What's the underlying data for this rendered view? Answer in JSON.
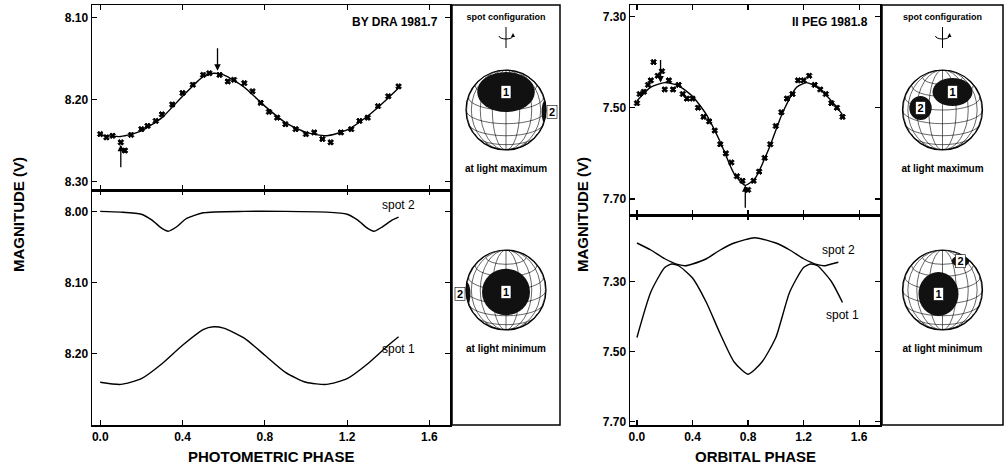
{
  "chart_data": [
    {
      "type": "line",
      "title": "BY DRA 1981.7",
      "x_label": "PHOTOMETRIC PHASE",
      "y_label": "MAGNITUDE (V)",
      "xlim": [
        -0.04,
        1.7
      ],
      "xticks": [
        {
          "value": 0,
          "label": "0.0"
        },
        0.4,
        0.8,
        1.2,
        1.6
      ],
      "grid": false,
      "panels": [
        {
          "ylim": [
            8.31,
            8.085
          ],
          "yticks": [
            {
              "value": 8.1,
              "label": "8.10"
            },
            {
              "value": 8.2,
              "label": "8.20"
            },
            {
              "value": 8.3,
              "label": "8.30"
            }
          ],
          "tick_labels": "y",
          "annotations": [
            {
              "x": 0.57,
              "y": 8.165,
              "arrow": "down"
            },
            {
              "x": 0.1,
              "y": 8.255,
              "arrow": "up"
            }
          ],
          "series": [
            {
              "type": "scatter",
              "marker": "cross",
              "color": "#000000",
              "x": [
                0.0,
                0.03,
                0.06,
                0.1,
                0.12,
                0.15,
                0.2,
                0.23,
                0.27,
                0.3,
                0.35,
                0.4,
                0.45,
                0.5,
                0.53,
                0.58,
                0.62,
                0.65,
                0.7,
                0.74,
                0.78,
                0.82,
                0.86,
                0.9,
                0.95,
                1.0,
                1.04,
                1.08,
                1.12,
                1.17,
                1.22,
                1.26,
                1.3,
                1.35,
                1.4,
                1.45
              ],
              "values": [
                8.242,
                8.246,
                8.244,
                8.252,
                8.262,
                8.243,
                8.236,
                8.232,
                8.226,
                8.218,
                8.206,
                8.192,
                8.182,
                8.17,
                8.168,
                8.17,
                8.178,
                8.176,
                8.18,
                8.19,
                8.204,
                8.215,
                8.222,
                8.23,
                8.236,
                8.242,
                8.24,
                8.248,
                8.252,
                8.24,
                8.236,
                8.226,
                8.222,
                8.208,
                8.196,
                8.184
              ]
            },
            {
              "type": "line",
              "line_style": "solid",
              "color": "#000000",
              "x": [
                0.0,
                0.1,
                0.2,
                0.3,
                0.4,
                0.5,
                0.55,
                0.6,
                0.7,
                0.8,
                0.9,
                1.0,
                1.1,
                1.2,
                1.3,
                1.4,
                1.45
              ],
              "values": [
                8.243,
                8.245,
                8.238,
                8.222,
                8.196,
                8.172,
                8.168,
                8.17,
                8.185,
                8.208,
                8.228,
                8.24,
                8.244,
                8.237,
                8.22,
                8.198,
                8.186
              ]
            }
          ]
        },
        {
          "ylim": [
            8.3,
            7.97
          ],
          "yticks": [
            {
              "value": 8.0,
              "label": "8.00"
            },
            {
              "value": 8.1,
              "label": "8.10"
            },
            {
              "value": 8.2,
              "label": "8.20"
            }
          ],
          "series": [
            {
              "name": "spot 2",
              "type": "line",
              "line_style": "solid",
              "color": "#000000",
              "x": [
                0.0,
                0.1,
                0.2,
                0.25,
                0.3,
                0.33,
                0.37,
                0.42,
                0.5,
                0.7,
                0.9,
                1.1,
                1.2,
                1.25,
                1.3,
                1.33,
                1.37,
                1.42,
                1.45
              ],
              "values": [
                8.0,
                8.001,
                8.004,
                8.012,
                8.024,
                8.028,
                8.022,
                8.01,
                8.002,
                8.0,
                8.0,
                8.001,
                8.004,
                8.012,
                8.024,
                8.028,
                8.022,
                8.012,
                8.008
              ]
            },
            {
              "name": "spot 1",
              "type": "line",
              "line_style": "solid",
              "color": "#000000",
              "x": [
                0.0,
                0.1,
                0.2,
                0.3,
                0.4,
                0.5,
                0.55,
                0.6,
                0.7,
                0.8,
                0.9,
                1.0,
                1.1,
                1.2,
                1.3,
                1.4,
                1.45
              ],
              "values": [
                8.24,
                8.243,
                8.235,
                8.214,
                8.188,
                8.166,
                8.162,
                8.164,
                8.178,
                8.202,
                8.226,
                8.24,
                8.243,
                8.235,
                8.214,
                8.188,
                8.176
              ]
            }
          ]
        }
      ]
    },
    {
      "type": "line",
      "title": "II PEG 1981.8",
      "x_label": "ORBITAL PHASE",
      "y_label": "MAGNITUDE (V)",
      "xlim": [
        -0.05,
        1.75
      ],
      "xticks": [
        {
          "value": 0,
          "label": "0.0"
        },
        0.4,
        0.8,
        1.2,
        1.6
      ],
      "grid": false,
      "panels": [
        {
          "ylim": [
            7.735,
            7.275
          ],
          "yticks": [
            {
              "value": 7.3,
              "label": "7.30"
            },
            {
              "value": 7.5,
              "label": "7.50"
            },
            {
              "value": 7.7,
              "label": "7.70"
            }
          ],
          "tick_labels": "y",
          "annotations": [
            {
              "x": 0.17,
              "y": 7.445,
              "arrow": "down"
            },
            {
              "x": 0.78,
              "y": 7.67,
              "arrow": "up"
            }
          ],
          "series": [
            {
              "type": "scatter",
              "marker": "cross",
              "color": "#000000",
              "x": [
                0.0,
                0.02,
                0.05,
                0.08,
                0.1,
                0.12,
                0.15,
                0.18,
                0.2,
                0.23,
                0.26,
                0.3,
                0.33,
                0.36,
                0.4,
                0.44,
                0.48,
                0.52,
                0.56,
                0.6,
                0.64,
                0.68,
                0.72,
                0.76,
                0.8,
                0.84,
                0.88,
                0.92,
                0.96,
                1.0,
                1.04,
                1.08,
                1.12,
                1.16,
                1.2,
                1.24,
                1.28,
                1.32,
                1.36,
                1.4,
                1.44,
                1.48
              ],
              "values": [
                7.49,
                7.47,
                7.465,
                7.45,
                7.44,
                7.4,
                7.43,
                7.42,
                7.46,
                7.44,
                7.46,
                7.45,
                7.47,
                7.48,
                7.48,
                7.5,
                7.52,
                7.53,
                7.55,
                7.58,
                7.6,
                7.62,
                7.65,
                7.66,
                7.68,
                7.66,
                7.64,
                7.61,
                7.58,
                7.54,
                7.51,
                7.48,
                7.47,
                7.44,
                7.44,
                7.43,
                7.45,
                7.46,
                7.47,
                7.49,
                7.5,
                7.52
              ]
            },
            {
              "type": "line",
              "line_style": "solid",
              "color": "#000000",
              "x": [
                0.0,
                0.1,
                0.2,
                0.3,
                0.4,
                0.5,
                0.6,
                0.7,
                0.78,
                0.85,
                0.95,
                1.05,
                1.15,
                1.22,
                1.3,
                1.4,
                1.48
              ],
              "values": [
                7.485,
                7.455,
                7.445,
                7.452,
                7.475,
                7.515,
                7.575,
                7.645,
                7.67,
                7.655,
                7.59,
                7.51,
                7.455,
                7.445,
                7.455,
                7.485,
                7.515
              ]
            }
          ]
        },
        {
          "ylim": [
            7.71,
            7.11
          ],
          "yticks": [
            {
              "value": 7.3,
              "label": "7.30"
            },
            {
              "value": 7.5,
              "label": "7.50"
            },
            {
              "value": 7.7,
              "label": "7.70"
            }
          ],
          "series": [
            {
              "name": "spot 2",
              "type": "line",
              "line_style": "solid",
              "color": "#000000",
              "x": [
                0.0,
                0.1,
                0.2,
                0.3,
                0.35,
                0.4,
                0.5,
                0.6,
                0.7,
                0.85,
                1.0,
                1.1,
                1.2,
                1.3,
                1.35,
                1.4,
                1.45
              ],
              "values": [
                7.19,
                7.21,
                7.235,
                7.252,
                7.255,
                7.25,
                7.235,
                7.21,
                7.19,
                7.175,
                7.19,
                7.21,
                7.235,
                7.252,
                7.255,
                7.25,
                7.245
              ]
            },
            {
              "name": "spot 1",
              "type": "line",
              "line_style": "solid",
              "color": "#000000",
              "x": [
                0.0,
                0.1,
                0.2,
                0.25,
                0.3,
                0.4,
                0.5,
                0.6,
                0.7,
                0.8,
                0.9,
                1.0,
                1.1,
                1.2,
                1.25,
                1.3,
                1.4,
                1.48
              ],
              "values": [
                7.46,
                7.33,
                7.26,
                7.25,
                7.255,
                7.29,
                7.36,
                7.45,
                7.53,
                7.565,
                7.53,
                7.46,
                7.33,
                7.26,
                7.25,
                7.255,
                7.3,
                7.36
              ]
            }
          ]
        }
      ]
    }
  ],
  "spot_diagrams": [
    {
      "title": "spot configuration",
      "views": [
        {
          "caption": "at light maximum",
          "spots": [
            "1",
            "2"
          ]
        },
        {
          "caption": "at light minimum",
          "spots": [
            "1",
            "2"
          ]
        }
      ]
    },
    {
      "title": "spot configuration",
      "views": [
        {
          "caption": "at light maximum",
          "spots": [
            "1",
            "2"
          ]
        },
        {
          "caption": "at light minimum",
          "spots": [
            "1",
            "2"
          ]
        }
      ]
    }
  ]
}
